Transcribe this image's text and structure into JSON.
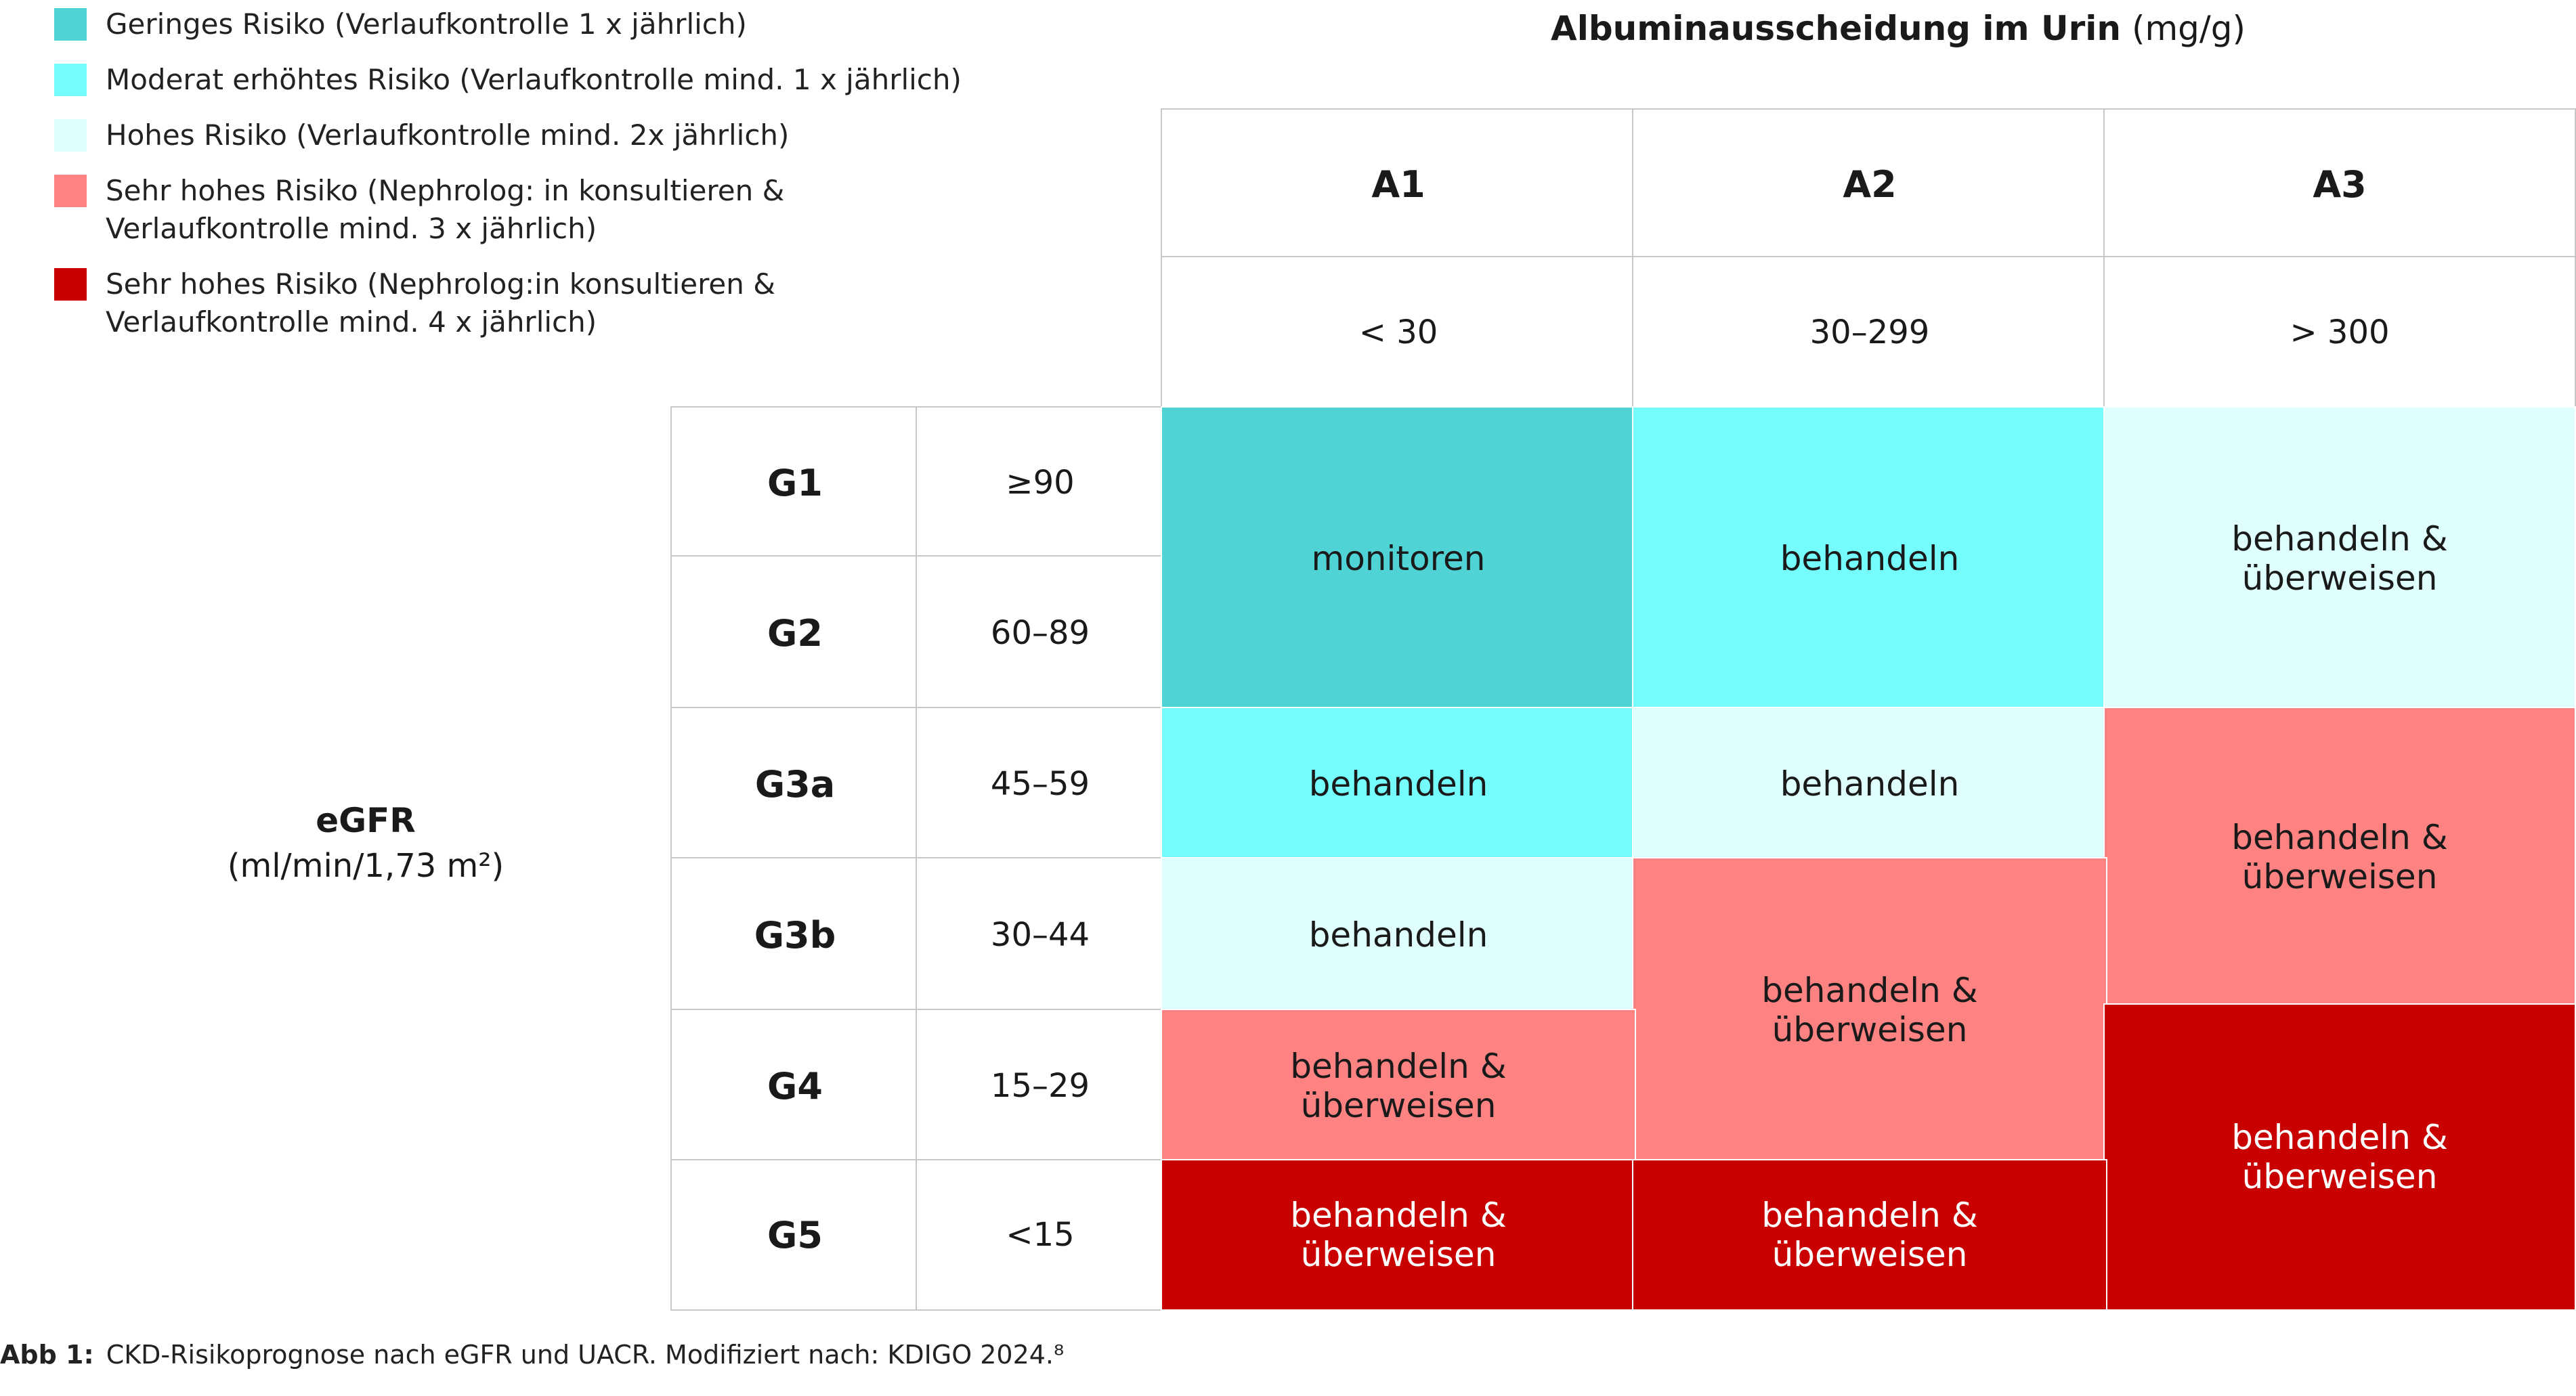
{
  "colors": {
    "low": "#4fd3d4",
    "moderate": "#75fdfd",
    "high": "#dffefe",
    "very_high_3": "#fd8282",
    "very_high_4": "#c80000"
  },
  "legend": [
    {
      "color": "#4fd3d4",
      "text": "Geringes Risiko (Verlaufkontrolle 1 x jährlich)"
    },
    {
      "color": "#75fdfd",
      "text": "Moderat erhöhtes Risiko (Verlaufkontrolle mind. 1 x jährlich)"
    },
    {
      "color": "#dffefe",
      "text": "Hohes Risiko (Verlaufkontrolle mind. 2x jährlich)"
    },
    {
      "color": "#fd8282",
      "text": "Sehr hohes Risiko (Nephrolog: in konsultieren &\nVerlaufkontrolle mind. 3 x jährlich)"
    },
    {
      "color": "#c80000",
      "text": "Sehr hohes Risiko (Nephrolog:in konsultieren &\nVerlaufkontrolle mind. 4 x jährlich)"
    }
  ],
  "header": {
    "title": "Albuminausscheidung im Urin",
    "unit": "(mg/g)",
    "columns": [
      {
        "code": "A1",
        "range": "< 30"
      },
      {
        "code": "A2",
        "range": "30–299"
      },
      {
        "code": "A3",
        "range": "> 300"
      }
    ]
  },
  "egfr": {
    "title": "eGFR",
    "unit": "(ml/min/1,73 m²)"
  },
  "rows": [
    {
      "code": "G1",
      "range": "≥90"
    },
    {
      "code": "G2",
      "range": "60–89"
    },
    {
      "code": "G3a",
      "range": "45–59"
    },
    {
      "code": "G3b",
      "range": "30–44"
    },
    {
      "code": "G4",
      "range": "15–29"
    },
    {
      "code": "G5",
      "range": "<15"
    }
  ],
  "cells": {
    "a1_g1g2": "monitoren",
    "a2_g1g2": "behandeln",
    "a3_g1g2": "behandeln &\nüberweisen",
    "a1_g3a": "behandeln",
    "a2_g3a": "behandeln",
    "a3_g3ab": "behandeln &\nüberweisen",
    "a1_g3b": "behandeln",
    "a2_g3bg4": "behandeln &\nüberweisen",
    "a1_g4": "behandeln &\nüberweisen",
    "a3_g4g5": "behandeln &\nüberweisen",
    "a1_g5": "behandeln &\nüberweisen",
    "a2_g5": "behandeln &\nüberweisen"
  },
  "caption": {
    "label": "Abb 1:",
    "text": "CKD-Risikoprognose nach eGFR und UACR. Modifiziert nach: KDIGO 2024.⁸"
  }
}
